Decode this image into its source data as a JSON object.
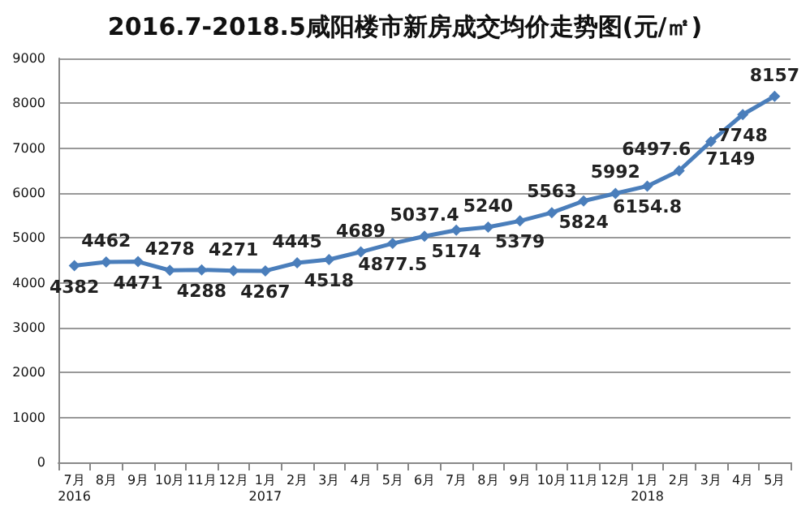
{
  "chart_data": {
    "type": "line",
    "title": "2016.7-2018.5咸阳楼市新房成交均价走势图(元/㎡)",
    "categories": [
      "7月\n2016",
      "8月",
      "9月",
      "10月",
      "11月",
      "12月",
      "1月\n2017",
      "2月",
      "3月",
      "4月",
      "5月",
      "6月",
      "7月",
      "8月",
      "9月",
      "10月",
      "11月",
      "12月",
      "1月\n2018",
      "2月",
      "3月",
      "4月",
      "5月"
    ],
    "series": [
      {
        "color": "#4a7ebb",
        "values": [
          4382,
          4462,
          4471,
          4278,
          4288,
          4271,
          4267,
          4445,
          4518,
          4689,
          4877.5,
          5037.4,
          5174,
          5240,
          5379,
          5563,
          5824,
          5992,
          6154.8,
          6497.6,
          7149,
          7748,
          8157
        ]
      }
    ],
    "ylim": [
      0,
      9000
    ],
    "yticks": [
      0,
      1000,
      2000,
      3000,
      4000,
      5000,
      6000,
      7000,
      8000,
      9000
    ],
    "grid": "y",
    "marker": "diamond",
    "line_style": "solid",
    "data_labels": true
  }
}
